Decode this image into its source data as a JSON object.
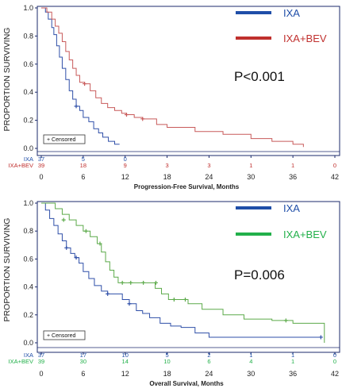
{
  "chart_data": [
    {
      "type": "line",
      "subtype": "kaplan-meier",
      "xlabel": "Progression-Free Survival, Months",
      "ylabel": "PROPORTION SURVIVING",
      "xlim": [
        0,
        42
      ],
      "ylim": [
        0,
        1.0
      ],
      "x_ticks": [
        0,
        6,
        12,
        18,
        24,
        30,
        36,
        42
      ],
      "y_ticks": [
        "0.0",
        "0.2",
        "0.4",
        "0.6",
        "0.8",
        "1.0"
      ],
      "p_value": "P<0.001",
      "censor_legend": "+ Censored",
      "series": [
        {
          "name": "IXA",
          "color": "#2f4fa8",
          "legend_color": "#1f4ea8",
          "points": [
            [
              0,
              1.0
            ],
            [
              0.6,
              0.97
            ],
            [
              1.0,
              0.92
            ],
            [
              1.5,
              0.86
            ],
            [
              1.8,
              0.81
            ],
            [
              2.2,
              0.73
            ],
            [
              2.6,
              0.65
            ],
            [
              3.0,
              0.57
            ],
            [
              3.5,
              0.49
            ],
            [
              4.0,
              0.41
            ],
            [
              4.5,
              0.35
            ],
            [
              5.0,
              0.3
            ],
            [
              5.5,
              0.27
            ],
            [
              6.0,
              0.22
            ],
            [
              6.8,
              0.19
            ],
            [
              7.5,
              0.14
            ],
            [
              8.2,
              0.11
            ],
            [
              8.8,
              0.08
            ],
            [
              9.6,
              0.05
            ],
            [
              10.5,
              0.03
            ],
            [
              11.2,
              0.03
            ]
          ],
          "censored": [
            [
              5.0,
              0.3
            ]
          ],
          "at_risk": [
            "37",
            "5",
            "0"
          ],
          "at_risk_x": [
            0,
            6,
            12
          ],
          "at_risk_label": "IXA"
        },
        {
          "name": "IXA+BEV",
          "color": "#c85a5a",
          "legend_color": "#c0302e",
          "points": [
            [
              0,
              1.0
            ],
            [
              0.8,
              0.97
            ],
            [
              1.5,
              0.92
            ],
            [
              2.0,
              0.87
            ],
            [
              2.5,
              0.82
            ],
            [
              3.0,
              0.76
            ],
            [
              3.5,
              0.69
            ],
            [
              4.0,
              0.63
            ],
            [
              4.5,
              0.57
            ],
            [
              5.0,
              0.52
            ],
            [
              5.5,
              0.47
            ],
            [
              6.2,
              0.46
            ],
            [
              7.0,
              0.41
            ],
            [
              7.8,
              0.36
            ],
            [
              8.6,
              0.32
            ],
            [
              9.5,
              0.29
            ],
            [
              10.5,
              0.27
            ],
            [
              11.5,
              0.25
            ],
            [
              12.2,
              0.24
            ],
            [
              13.3,
              0.22
            ],
            [
              14.5,
              0.21
            ],
            [
              16.5,
              0.17
            ],
            [
              18.0,
              0.15
            ],
            [
              22.0,
              0.12
            ],
            [
              26.0,
              0.1
            ],
            [
              30.0,
              0.07
            ],
            [
              33.0,
              0.05
            ],
            [
              36.0,
              0.03
            ],
            [
              37.5,
              0.01
            ]
          ],
          "censored": [
            [
              6.2,
              0.46
            ],
            [
              12.2,
              0.24
            ],
            [
              14.5,
              0.21
            ]
          ],
          "at_risk": [
            "39",
            "18",
            "9",
            "3",
            "3",
            "1",
            "1",
            "0"
          ],
          "at_risk_x": [
            0,
            6,
            12,
            18,
            24,
            30,
            36,
            42
          ],
          "at_risk_label": "IXA+BEV"
        }
      ]
    },
    {
      "type": "line",
      "subtype": "kaplan-meier",
      "xlabel": "Overall Survival, Months",
      "ylabel": "PROPORTION SURVIVING",
      "xlim": [
        0,
        42
      ],
      "ylim": [
        0,
        1.0
      ],
      "x_ticks": [
        0,
        6,
        12,
        18,
        24,
        30,
        36,
        42
      ],
      "y_ticks": [
        "0.0",
        "0.2",
        "0.4",
        "0.6",
        "0.8",
        "1.0"
      ],
      "p_value": "P=0.006",
      "censor_legend": "+ Censored",
      "series": [
        {
          "name": "IXA",
          "color": "#2f4fa8",
          "legend_color": "#1f4ea8",
          "points": [
            [
              0,
              1.0
            ],
            [
              0.6,
              0.95
            ],
            [
              1.2,
              0.89
            ],
            [
              1.8,
              0.84
            ],
            [
              2.4,
              0.78
            ],
            [
              3.0,
              0.73
            ],
            [
              3.6,
              0.68
            ],
            [
              4.2,
              0.64
            ],
            [
              4.8,
              0.61
            ],
            [
              5.4,
              0.57
            ],
            [
              6.0,
              0.51
            ],
            [
              6.8,
              0.46
            ],
            [
              7.6,
              0.41
            ],
            [
              8.6,
              0.37
            ],
            [
              9.5,
              0.35
            ],
            [
              11.0,
              0.35
            ],
            [
              11.6,
              0.31
            ],
            [
              12.6,
              0.28
            ],
            [
              13.6,
              0.23
            ],
            [
              14.5,
              0.21
            ],
            [
              15.5,
              0.18
            ],
            [
              17.0,
              0.14
            ],
            [
              18.5,
              0.12
            ],
            [
              20.0,
              0.11
            ],
            [
              22.0,
              0.07
            ],
            [
              24.0,
              0.04
            ],
            [
              40.0,
              0.04
            ]
          ],
          "censored": [
            [
              3.6,
              0.68
            ],
            [
              5.0,
              0.61
            ],
            [
              9.5,
              0.35
            ],
            [
              12.6,
              0.28
            ],
            [
              40.0,
              0.04
            ]
          ],
          "at_risk": [
            "37",
            "17",
            "10",
            "5",
            "2",
            "1",
            "1",
            "0"
          ],
          "at_risk_x": [
            0,
            6,
            12,
            18,
            24,
            30,
            36,
            42
          ],
          "at_risk_label": "IXA"
        },
        {
          "name": "IXA+BEV",
          "color": "#5caa4a",
          "legend_color": "#22b04a",
          "points": [
            [
              0,
              1.0
            ],
            [
              1.0,
              1.0
            ],
            [
              2.0,
              0.96
            ],
            [
              3.0,
              0.92
            ],
            [
              4.0,
              0.88
            ],
            [
              5.0,
              0.84
            ],
            [
              6.0,
              0.8
            ],
            [
              7.0,
              0.76
            ],
            [
              8.0,
              0.71
            ],
            [
              8.6,
              0.65
            ],
            [
              9.2,
              0.58
            ],
            [
              9.8,
              0.52
            ],
            [
              10.4,
              0.47
            ],
            [
              11.0,
              0.43
            ],
            [
              15.5,
              0.43
            ],
            [
              16.3,
              0.39
            ],
            [
              17.2,
              0.35
            ],
            [
              18.2,
              0.31
            ],
            [
              20.0,
              0.31
            ],
            [
              21.0,
              0.28
            ],
            [
              23.0,
              0.24
            ],
            [
              26.0,
              0.2
            ],
            [
              29.0,
              0.17
            ],
            [
              33.0,
              0.16
            ],
            [
              36.0,
              0.14
            ],
            [
              40.5,
              0.14
            ],
            [
              40.5,
              0.0
            ]
          ],
          "censored": [
            [
              3.2,
              0.88
            ],
            [
              6.4,
              0.8
            ],
            [
              8.4,
              0.71
            ],
            [
              11.6,
              0.43
            ],
            [
              12.8,
              0.43
            ],
            [
              14.6,
              0.43
            ],
            [
              16.4,
              0.43
            ],
            [
              19.0,
              0.31
            ],
            [
              20.6,
              0.31
            ],
            [
              35.0,
              0.16
            ]
          ],
          "at_risk": [
            "39",
            "30",
            "14",
            "10",
            "6",
            "4",
            "1",
            "0"
          ],
          "at_risk_x": [
            0,
            6,
            12,
            18,
            24,
            30,
            36,
            42
          ],
          "at_risk_label": "IXA+BEV"
        }
      ]
    }
  ]
}
